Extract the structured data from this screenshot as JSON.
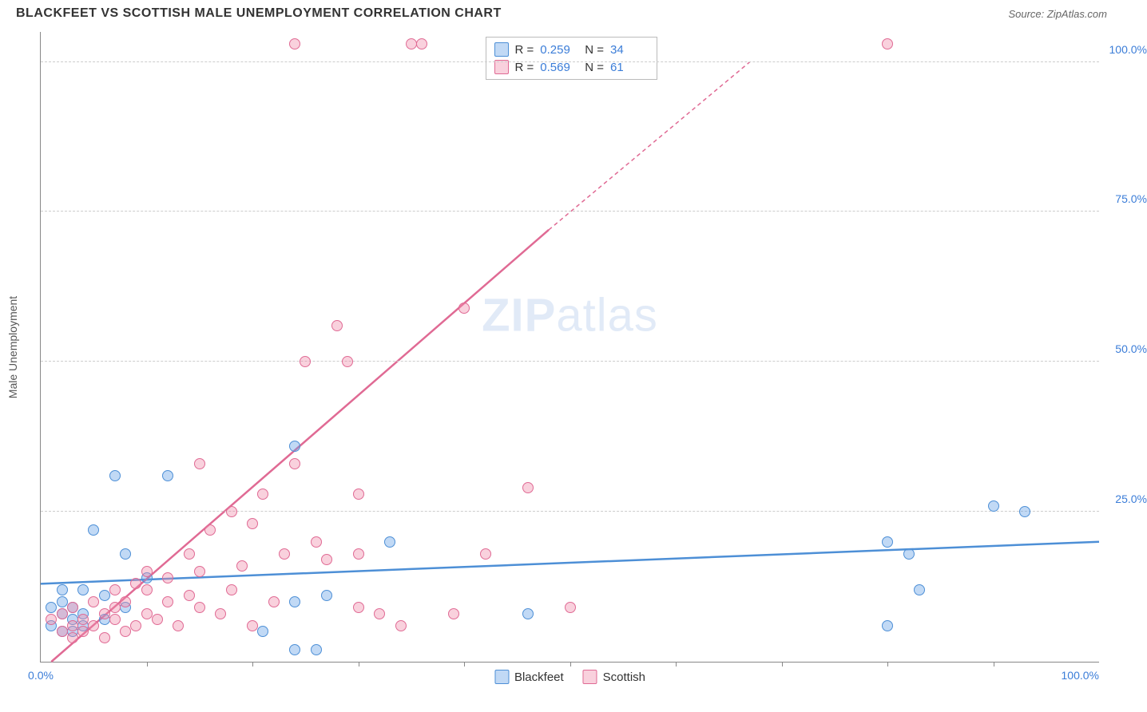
{
  "title": "BLACKFEET VS SCOTTISH MALE UNEMPLOYMENT CORRELATION CHART",
  "source_label": "Source: ",
  "source_name": "ZipAtlas.com",
  "ylabel": "Male Unemployment",
  "watermark_zip": "ZIP",
  "watermark_atlas": "atlas",
  "chart": {
    "type": "scatter",
    "xlim": [
      0,
      100
    ],
    "ylim": [
      0,
      105
    ],
    "ytick_values": [
      25,
      50,
      75,
      100
    ],
    "ytick_labels": [
      "25.0%",
      "50.0%",
      "75.0%",
      "100.0%"
    ],
    "xtick_values": [
      10,
      20,
      30,
      40,
      50,
      60,
      70,
      80,
      90
    ],
    "xtick_end_labels": {
      "start": "0.0%",
      "end": "100.0%"
    },
    "background_color": "#ffffff",
    "grid_color": "#d0d0d0",
    "marker_radius": 7,
    "series": [
      {
        "name": "Blackfeet",
        "color_fill": "rgba(100,160,230,0.4)",
        "color_stroke": "#4d8fd6",
        "R": "0.259",
        "N": "34",
        "trend": {
          "x1": 0,
          "y1": 13,
          "x2": 100,
          "y2": 20,
          "width": 2.5,
          "dash": "none"
        },
        "points": [
          [
            1,
            6
          ],
          [
            1,
            9
          ],
          [
            2,
            5
          ],
          [
            2,
            8
          ],
          [
            2,
            10
          ],
          [
            3,
            5
          ],
          [
            3,
            7
          ],
          [
            3,
            9
          ],
          [
            4,
            12
          ],
          [
            4,
            6
          ],
          [
            5,
            22
          ],
          [
            6,
            7
          ],
          [
            7,
            31
          ],
          [
            8,
            18
          ],
          [
            10,
            14
          ],
          [
            12,
            31
          ],
          [
            21,
            5
          ],
          [
            24,
            36
          ],
          [
            24,
            10
          ],
          [
            24,
            2
          ],
          [
            26,
            2
          ],
          [
            27,
            11
          ],
          [
            33,
            20
          ],
          [
            46,
            8
          ],
          [
            80,
            6
          ],
          [
            80,
            20
          ],
          [
            82,
            18
          ],
          [
            83,
            12
          ],
          [
            90,
            26
          ],
          [
            93,
            25
          ],
          [
            4,
            8
          ],
          [
            6,
            11
          ],
          [
            8,
            9
          ],
          [
            2,
            12
          ]
        ]
      },
      {
        "name": "Scottish",
        "color_fill": "rgba(240,140,170,0.4)",
        "color_stroke": "#e06a94",
        "R": "0.569",
        "N": "61",
        "trend": {
          "x1": 1,
          "y1": 0,
          "x2": 48,
          "y2": 72,
          "width": 2.5,
          "dash": "none"
        },
        "trend_ext": {
          "x1": 48,
          "y1": 72,
          "x2": 67,
          "y2": 100,
          "width": 1.5,
          "dash": "5,4"
        },
        "points": [
          [
            1,
            7
          ],
          [
            2,
            5
          ],
          [
            2,
            8
          ],
          [
            3,
            4
          ],
          [
            3,
            6
          ],
          [
            3,
            9
          ],
          [
            4,
            5
          ],
          [
            4,
            7
          ],
          [
            5,
            6
          ],
          [
            5,
            10
          ],
          [
            6,
            4
          ],
          [
            6,
            8
          ],
          [
            7,
            7
          ],
          [
            7,
            12
          ],
          [
            8,
            5
          ],
          [
            8,
            10
          ],
          [
            9,
            6
          ],
          [
            9,
            13
          ],
          [
            10,
            8
          ],
          [
            10,
            15
          ],
          [
            11,
            7
          ],
          [
            12,
            10
          ],
          [
            12,
            14
          ],
          [
            13,
            6
          ],
          [
            14,
            11
          ],
          [
            14,
            18
          ],
          [
            15,
            9
          ],
          [
            15,
            15
          ],
          [
            16,
            22
          ],
          [
            17,
            8
          ],
          [
            18,
            12
          ],
          [
            18,
            25
          ],
          [
            19,
            16
          ],
          [
            20,
            6
          ],
          [
            20,
            23
          ],
          [
            21,
            28
          ],
          [
            22,
            10
          ],
          [
            23,
            18
          ],
          [
            24,
            33
          ],
          [
            25,
            50
          ],
          [
            26,
            20
          ],
          [
            27,
            17
          ],
          [
            28,
            56
          ],
          [
            29,
            50
          ],
          [
            30,
            9
          ],
          [
            30,
            18
          ],
          [
            30,
            28
          ],
          [
            32,
            8
          ],
          [
            34,
            6
          ],
          [
            35,
            103
          ],
          [
            36,
            103
          ],
          [
            39,
            8
          ],
          [
            40,
            59
          ],
          [
            42,
            18
          ],
          [
            46,
            29
          ],
          [
            50,
            9
          ],
          [
            80,
            103
          ],
          [
            24,
            103
          ],
          [
            15,
            33
          ],
          [
            10,
            12
          ],
          [
            7,
            9
          ]
        ]
      }
    ]
  },
  "bottom_legend": [
    {
      "label": "Blackfeet",
      "series": 0
    },
    {
      "label": "Scottish",
      "series": 1
    }
  ]
}
